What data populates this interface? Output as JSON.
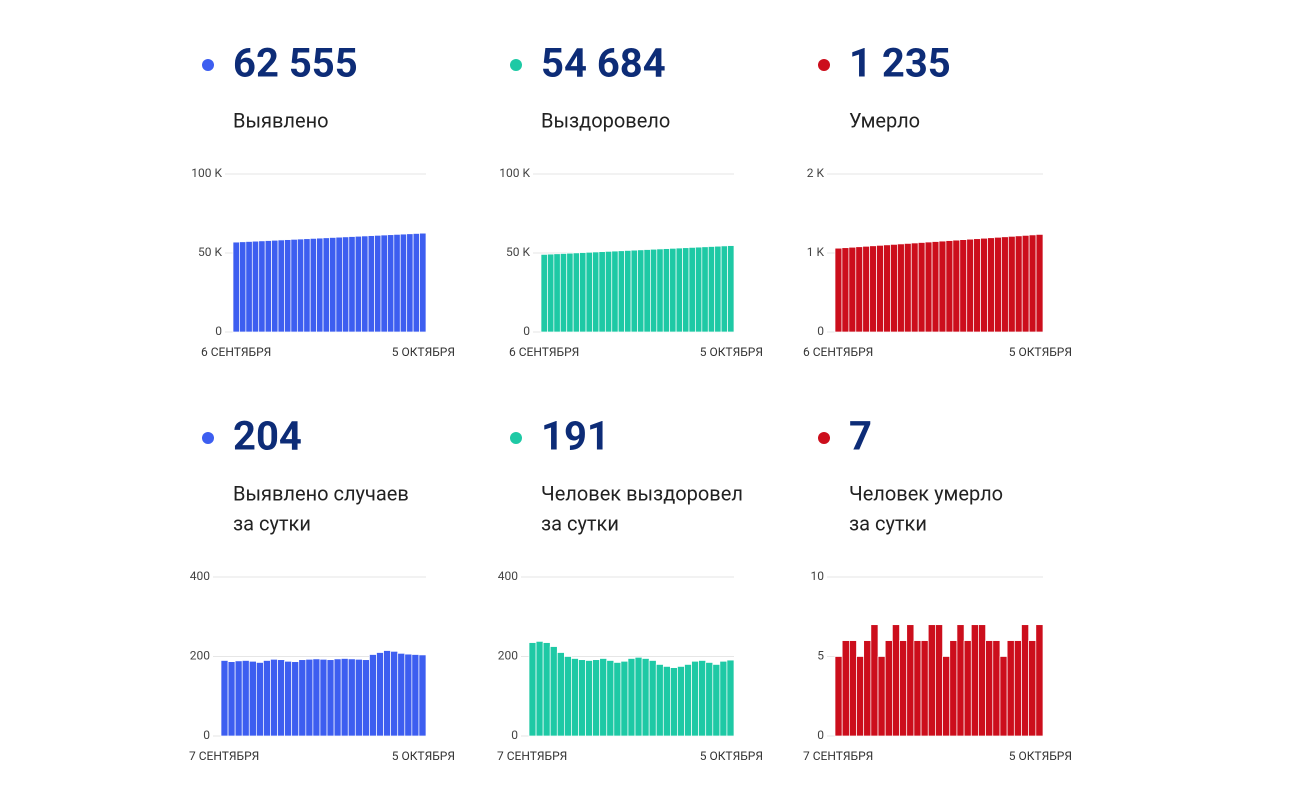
{
  "chart_data": [
    {
      "type": "bar",
      "headline": "62 555",
      "label": [
        "Выявлено"
      ],
      "color": "#3d5ef0",
      "grid": true,
      "categories": [
        "6 СЕНТЯБРЯ",
        null,
        null,
        null,
        null,
        null,
        null,
        null,
        null,
        null,
        null,
        null,
        null,
        null,
        null,
        null,
        null,
        null,
        null,
        null,
        null,
        null,
        null,
        null,
        null,
        null,
        null,
        null,
        null,
        "5 ОКТЯБРЯ"
      ],
      "values": [
        56900,
        57095,
        57290,
        57485,
        57680,
        57875,
        58070,
        58265,
        58460,
        58655,
        58850,
        59045,
        59240,
        59435,
        59630,
        59825,
        60020,
        60215,
        60410,
        60605,
        60800,
        60995,
        61190,
        61385,
        61580,
        61775,
        61970,
        62165,
        62360,
        62555
      ],
      "ylim": [
        0,
        100000
      ],
      "yticks": [
        0,
        {
          "value": 50000,
          "label": "50 K"
        },
        {
          "value": 100000,
          "label": "100 K"
        }
      ]
    },
    {
      "type": "bar",
      "headline": "54 684",
      "label": [
        "Выздоровело"
      ],
      "color": "#1ec9a5",
      "grid": true,
      "categories": [
        "6 СЕНТЯБРЯ",
        null,
        null,
        null,
        null,
        null,
        null,
        null,
        null,
        null,
        null,
        null,
        null,
        null,
        null,
        null,
        null,
        null,
        null,
        null,
        null,
        null,
        null,
        null,
        null,
        null,
        null,
        null,
        null,
        "5 ОКТЯБРЯ"
      ],
      "values": [
        49116,
        49308,
        49500,
        49692,
        49884,
        50076,
        50268,
        50460,
        50652,
        50844,
        51036,
        51228,
        51420,
        51612,
        51804,
        51996,
        52188,
        52380,
        52572,
        52764,
        52956,
        53148,
        53340,
        53532,
        53724,
        53916,
        54108,
        54300,
        54492,
        54684
      ],
      "ylim": [
        0,
        100000
      ],
      "yticks": [
        0,
        {
          "value": 50000,
          "label": "50 K"
        },
        {
          "value": 100000,
          "label": "100 K"
        }
      ]
    },
    {
      "type": "bar",
      "headline": "1 235",
      "label": [
        "Умерло"
      ],
      "color": "#cc0e1c",
      "grid": true,
      "categories": [
        "6 СЕНТЯБРЯ",
        null,
        null,
        null,
        null,
        null,
        null,
        null,
        null,
        null,
        null,
        null,
        null,
        null,
        null,
        null,
        null,
        null,
        null,
        null,
        null,
        null,
        null,
        null,
        null,
        null,
        null,
        null,
        null,
        "5 ОКТЯБРЯ"
      ],
      "values": [
        1061,
        1067,
        1073,
        1079,
        1085,
        1091,
        1097,
        1103,
        1109,
        1115,
        1121,
        1127,
        1133,
        1139,
        1145,
        1151,
        1157,
        1163,
        1169,
        1175,
        1181,
        1187,
        1193,
        1199,
        1205,
        1211,
        1217,
        1223,
        1229,
        1235
      ],
      "ylim": [
        0,
        2000
      ],
      "yticks": [
        0,
        {
          "value": 1000,
          "label": "1 K"
        },
        {
          "value": 2000,
          "label": "2 K"
        }
      ]
    },
    {
      "type": "bar",
      "headline": "204",
      "label": [
        "Выявлено случаев",
        "за сутки"
      ],
      "color": "#3d5ef0",
      "grid": true,
      "categories": [
        "7 СЕНТЯБРЯ",
        null,
        null,
        null,
        null,
        null,
        null,
        null,
        null,
        null,
        null,
        null,
        null,
        null,
        null,
        null,
        null,
        null,
        null,
        null,
        null,
        null,
        null,
        null,
        null,
        null,
        null,
        null,
        "5 ОКТЯБРЯ"
      ],
      "values": [
        190,
        187,
        189,
        190,
        188,
        185,
        190,
        193,
        192,
        188,
        187,
        192,
        193,
        194,
        193,
        192,
        194,
        195,
        194,
        193,
        192,
        205,
        210,
        215,
        213,
        208,
        206,
        205,
        204
      ],
      "ylim": [
        0,
        400
      ],
      "yticks": [
        0,
        200,
        400
      ]
    },
    {
      "type": "bar",
      "headline": "191",
      "label": [
        "Человек выздоровел",
        "за сутки"
      ],
      "color": "#1ec9a5",
      "grid": true,
      "categories": [
        "7 СЕНТЯБРЯ",
        null,
        null,
        null,
        null,
        null,
        null,
        null,
        null,
        null,
        null,
        null,
        null,
        null,
        null,
        null,
        null,
        null,
        null,
        null,
        null,
        null,
        null,
        null,
        null,
        null,
        null,
        null,
        "5 ОКТЯБРЯ"
      ],
      "values": [
        235,
        238,
        235,
        225,
        210,
        200,
        195,
        192,
        190,
        192,
        195,
        190,
        185,
        188,
        195,
        198,
        195,
        190,
        180,
        175,
        172,
        175,
        180,
        188,
        190,
        185,
        180,
        188,
        191
      ],
      "ylim": [
        0,
        400
      ],
      "yticks": [
        0,
        200,
        400
      ]
    },
    {
      "type": "bar",
      "headline": "7",
      "label": [
        "Человек умерло",
        "за сутки"
      ],
      "color": "#cc0e1c",
      "grid": true,
      "categories": [
        "7 СЕНТЯБРЯ",
        null,
        null,
        null,
        null,
        null,
        null,
        null,
        null,
        null,
        null,
        null,
        null,
        null,
        null,
        null,
        null,
        null,
        null,
        null,
        null,
        null,
        null,
        null,
        null,
        null,
        null,
        null,
        "5 ОКТЯБРЯ"
      ],
      "values": [
        5,
        6,
        6,
        5,
        6,
        7,
        5,
        6,
        7,
        6,
        7,
        6,
        6,
        7,
        7,
        5,
        6,
        7,
        6,
        7,
        7,
        6,
        6,
        5,
        6,
        6,
        7,
        6,
        7
      ],
      "ylim": [
        0,
        10
      ],
      "yticks": [
        0,
        5,
        10
      ]
    }
  ]
}
